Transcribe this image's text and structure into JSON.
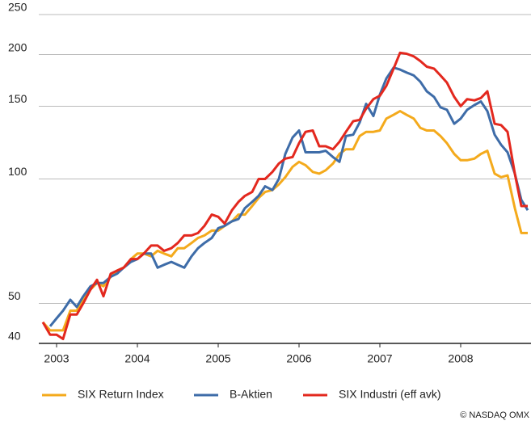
{
  "chart_data": {
    "type": "line",
    "log_y": true,
    "grid": true,
    "xlim": [
      2002.82,
      2008.87
    ],
    "xticks": [
      2003,
      2004,
      2005,
      2006,
      2007,
      2008
    ],
    "ylim": [
      40,
      250
    ],
    "yticks": [
      40,
      50,
      100,
      150,
      200,
      250
    ],
    "x": [
      2002.83,
      2002.92,
      2003.0,
      2003.08,
      2003.17,
      2003.25,
      2003.33,
      2003.42,
      2003.5,
      2003.58,
      2003.67,
      2003.75,
      2003.83,
      2003.92,
      2004.0,
      2004.08,
      2004.17,
      2004.25,
      2004.33,
      2004.42,
      2004.5,
      2004.58,
      2004.67,
      2004.75,
      2004.83,
      2004.92,
      2005.0,
      2005.08,
      2005.17,
      2005.25,
      2005.33,
      2005.42,
      2005.5,
      2005.58,
      2005.67,
      2005.75,
      2005.83,
      2005.92,
      2006.0,
      2006.08,
      2006.17,
      2006.25,
      2006.33,
      2006.42,
      2006.5,
      2006.58,
      2006.67,
      2006.75,
      2006.83,
      2006.92,
      2007.0,
      2007.08,
      2007.17,
      2007.25,
      2007.33,
      2007.42,
      2007.5,
      2007.58,
      2007.67,
      2007.75,
      2007.83,
      2007.92,
      2008.0,
      2008.08,
      2008.17,
      2008.25,
      2008.33,
      2008.42,
      2008.5,
      2008.58,
      2008.67,
      2008.75,
      2008.83
    ],
    "series": [
      {
        "name": "SIX Return Index",
        "color": "#f4aa1c",
        "values": [
          45,
          43,
          43,
          43,
          48,
          48,
          51,
          54,
          56,
          55,
          58,
          60,
          61,
          64,
          66,
          66,
          65,
          67,
          66,
          65,
          68,
          68,
          70,
          72,
          73,
          75,
          75,
          77,
          79,
          82,
          82,
          86,
          90,
          93,
          94,
          97,
          101,
          107,
          110,
          108,
          104,
          103,
          105,
          109,
          115,
          118,
          118,
          127,
          130,
          130,
          131,
          140,
          143,
          146,
          143,
          140,
          133,
          131,
          131,
          127,
          122,
          115,
          111,
          111,
          112,
          115,
          117,
          103,
          101,
          102,
          85,
          74,
          74
        ]
      },
      {
        "name": "B-Aktien",
        "color": "#3e6ca8",
        "values": [
          null,
          44,
          46,
          48,
          51,
          49,
          52,
          55,
          56,
          56,
          58,
          59,
          61,
          63,
          64,
          66,
          66,
          61,
          62,
          63,
          62,
          61,
          65,
          68,
          70,
          72,
          76,
          77,
          79,
          80,
          85,
          88,
          91,
          96,
          94,
          100,
          115,
          126,
          131,
          116,
          116,
          116,
          117,
          113,
          110,
          127,
          128,
          137,
          152,
          142,
          160,
          175,
          186,
          184,
          181,
          178,
          172,
          163,
          158,
          149,
          147,
          136,
          140,
          147,
          151,
          154,
          146,
          128,
          121,
          116,
          103,
          89,
          84
        ]
      },
      {
        "name": "SIX Industri (eff avk)",
        "color": "#e3281e",
        "values": [
          45,
          42,
          42,
          41,
          47,
          47,
          50,
          54,
          57,
          52,
          59,
          60,
          61,
          64,
          64,
          66,
          69,
          69,
          67,
          68,
          70,
          73,
          73,
          74,
          77,
          82,
          81,
          78,
          84,
          88,
          91,
          93,
          100,
          100,
          104,
          109,
          112,
          113,
          122,
          130,
          131,
          120,
          120,
          118,
          123,
          130,
          138,
          139,
          148,
          156,
          159,
          168,
          185,
          202,
          201,
          198,
          193,
          187,
          185,
          178,
          171,
          158,
          150,
          156,
          155,
          157,
          163,
          136,
          135,
          130,
          103,
          86,
          86
        ]
      }
    ],
    "source": "© NASDAQ OMX"
  }
}
